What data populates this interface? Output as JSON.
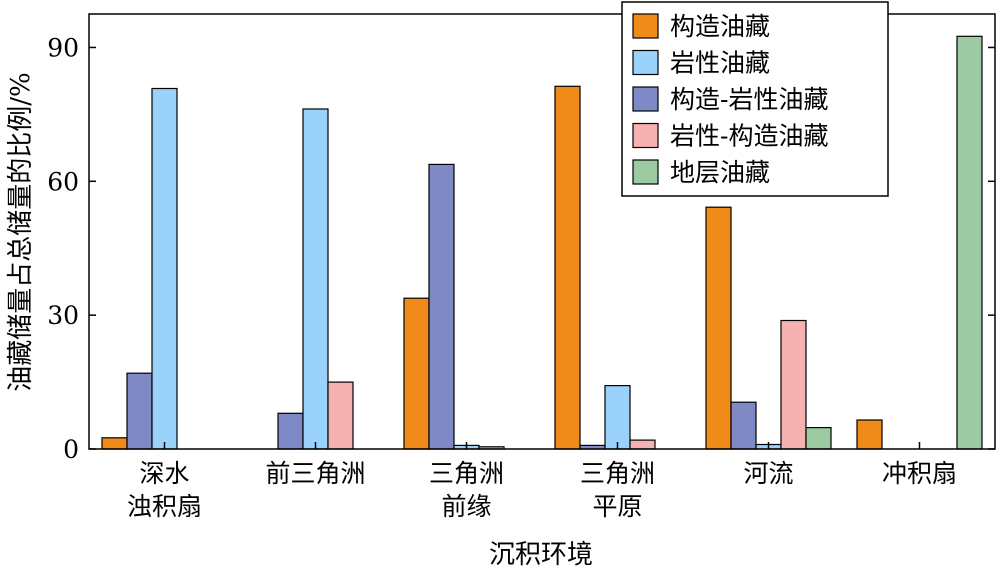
{
  "chart_data": {
    "type": "bar",
    "title": "",
    "xlabel": "沉积环境",
    "ylabel": "油藏储量占总储量的比例/%",
    "ylim": [
      0,
      90
    ],
    "yticks": [
      0,
      30,
      60,
      90
    ],
    "categories": [
      [
        "深水",
        "浊积扇"
      ],
      [
        "前三角洲"
      ],
      [
        "三角洲",
        "前缘"
      ],
      [
        "三角洲",
        "平原"
      ],
      [
        "河流"
      ],
      [
        "冲积扇"
      ]
    ],
    "series": [
      {
        "name": "构造油藏",
        "color": "#f08a19",
        "values": [
          2.5,
          0,
          33.8,
          81.3,
          54.2,
          6.5
        ]
      },
      {
        "name": "岩性油藏",
        "color": "#9ad2fb",
        "values": [
          80.8,
          76.2,
          0.8,
          14.2,
          1.0,
          0
        ]
      },
      {
        "name": "构造-岩性油藏",
        "color": "#7f89c6",
        "values": [
          17.0,
          8.0,
          63.8,
          0.8,
          10.5,
          0
        ]
      },
      {
        "name": "岩性-构造油藏",
        "color": "#f6b2b1",
        "values": [
          0,
          15.0,
          0.5,
          2.0,
          28.8,
          0
        ]
      },
      {
        "name": "地层油藏",
        "color": "#9ccba3",
        "values": [
          0,
          0,
          0,
          0,
          4.8,
          92.5
        ]
      }
    ],
    "bar_order": [
      "构造油藏",
      "构造-岩性油藏",
      "岩性油藏",
      "岩性-构造油藏",
      "地层油藏"
    ],
    "legend_position": "top-right",
    "grid": false
  }
}
